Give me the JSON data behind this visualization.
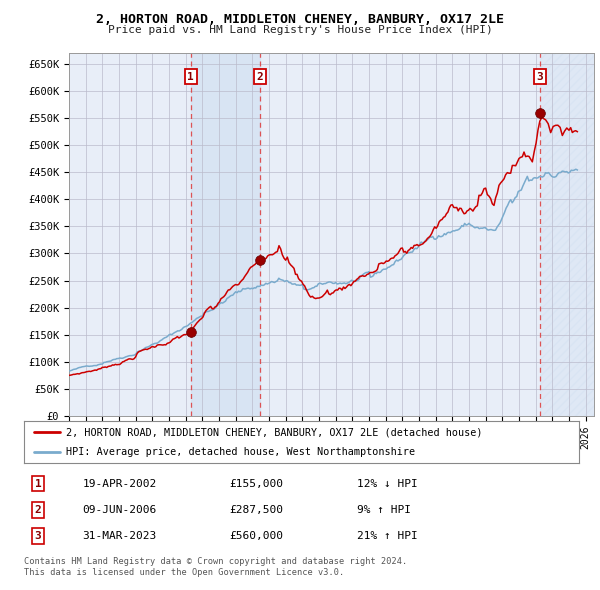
{
  "title": "2, HORTON ROAD, MIDDLETON CHENEY, BANBURY, OX17 2LE",
  "subtitle": "Price paid vs. HM Land Registry's House Price Index (HPI)",
  "ylim": [
    0,
    670000
  ],
  "yticks": [
    0,
    50000,
    100000,
    150000,
    200000,
    250000,
    300000,
    350000,
    400000,
    450000,
    500000,
    550000,
    600000,
    650000
  ],
  "ytick_labels": [
    "£0",
    "£50K",
    "£100K",
    "£150K",
    "£200K",
    "£250K",
    "£300K",
    "£350K",
    "£400K",
    "£450K",
    "£500K",
    "£550K",
    "£600K",
    "£650K"
  ],
  "xlim_start": 1995.0,
  "xlim_end": 2026.5,
  "background_color": "#ffffff",
  "plot_bg_color": "#e8eef8",
  "grid_color": "#bbbbcc",
  "red_line_color": "#cc0000",
  "blue_line_color": "#7aabcd",
  "sale_marker_color": "#990000",
  "dashed_line_color": "#dd4444",
  "shade_color": "#ccddf0",
  "sale_dates": [
    2002.3,
    2006.44,
    2023.25
  ],
  "sale_prices": [
    155000,
    287500,
    560000
  ],
  "sale_labels": [
    "1",
    "2",
    "3"
  ],
  "legend_line1": "2, HORTON ROAD, MIDDLETON CHENEY, BANBURY, OX17 2LE (detached house)",
  "legend_line2": "HPI: Average price, detached house, West Northamptonshire",
  "table_rows": [
    [
      "1",
      "19-APR-2002",
      "£155,000",
      "12% ↓ HPI"
    ],
    [
      "2",
      "09-JUN-2006",
      "£287,500",
      "9% ↑ HPI"
    ],
    [
      "3",
      "31-MAR-2023",
      "£560,000",
      "21% ↑ HPI"
    ]
  ],
  "footnote1": "Contains HM Land Registry data © Crown copyright and database right 2024.",
  "footnote2": "This data is licensed under the Open Government Licence v3.0."
}
